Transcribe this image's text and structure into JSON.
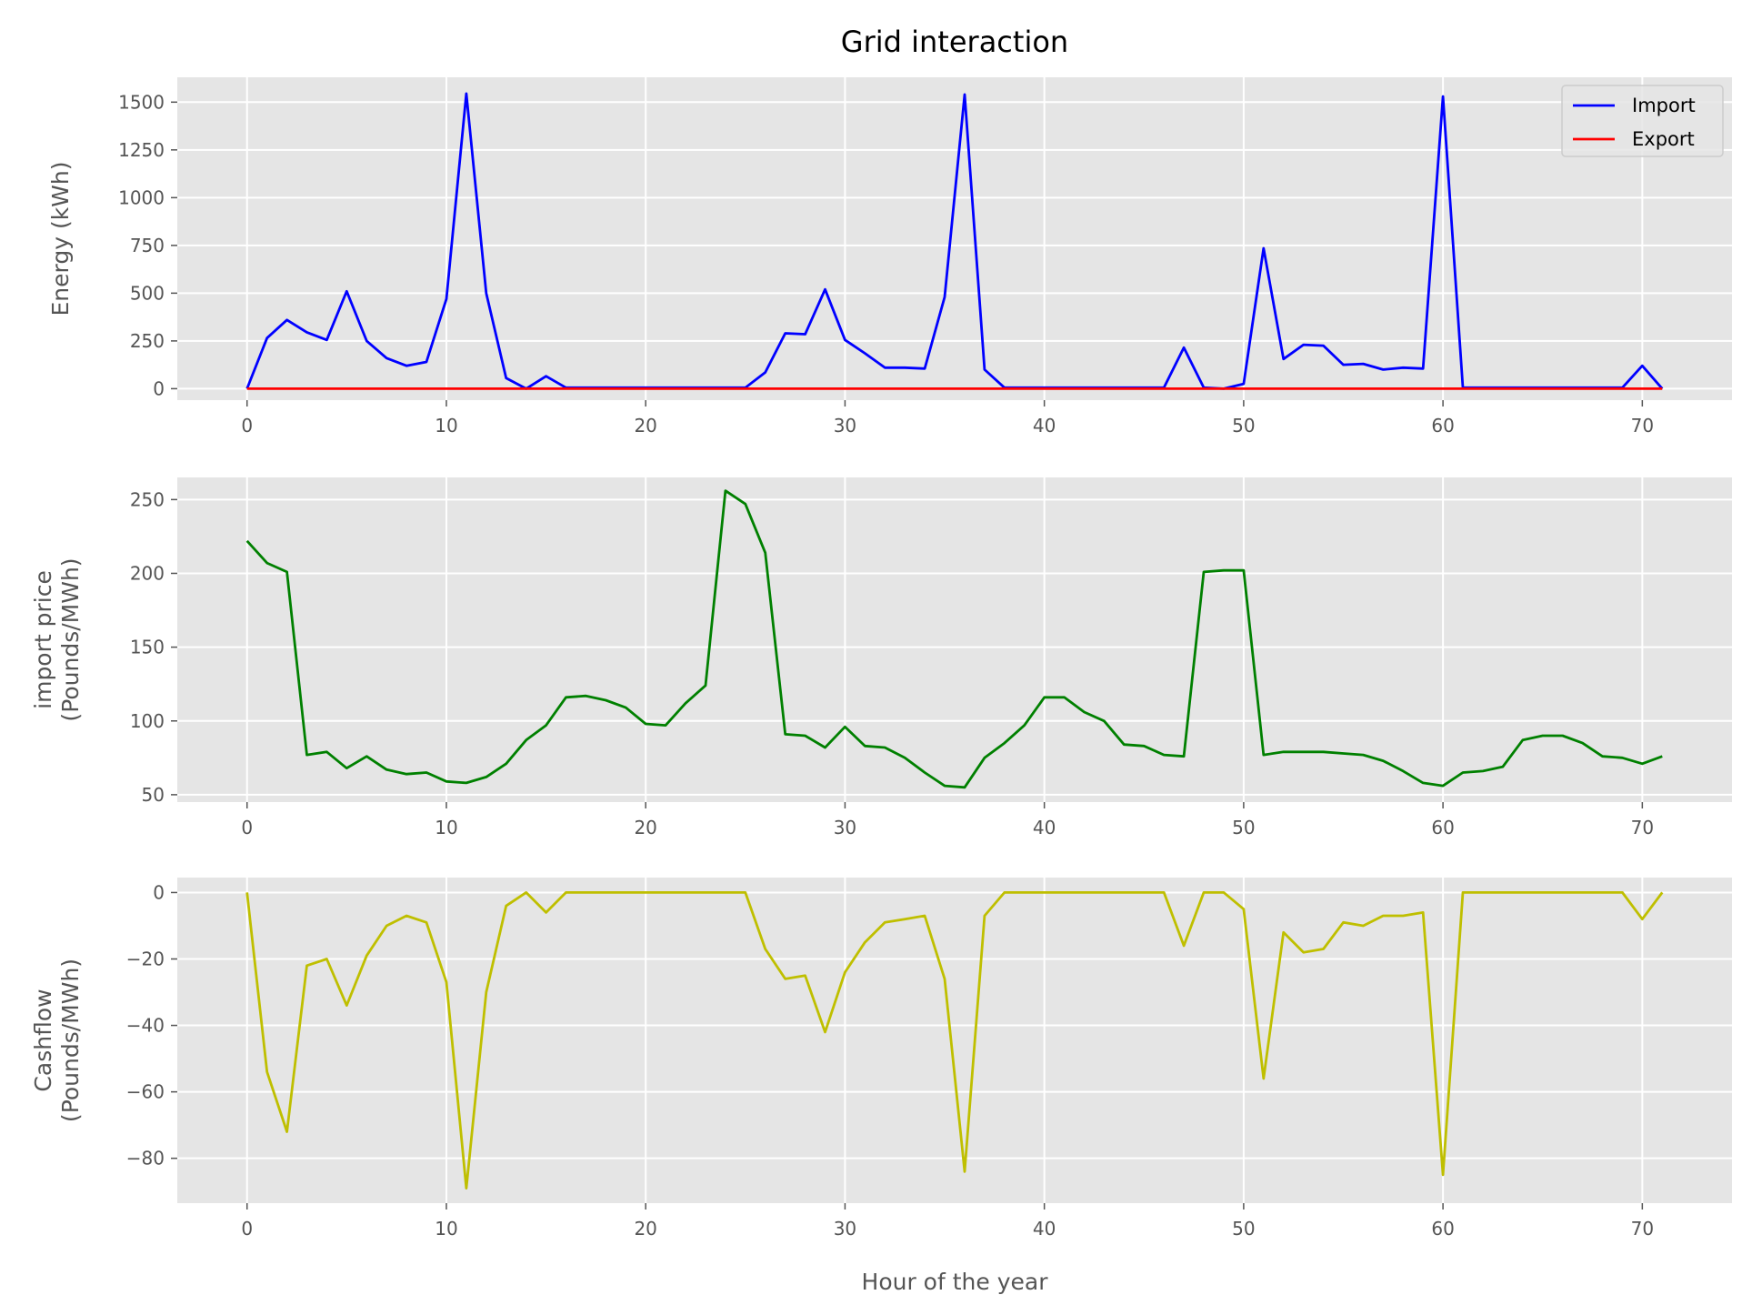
{
  "figure": {
    "title": "Grid interaction",
    "xlabel": "Hour of the year"
  },
  "colors": {
    "background": "#E5E5E5",
    "grid": "#FFFFFF",
    "import": "#0000FF",
    "export": "#FF0000",
    "price": "#008000",
    "cashflow": "#BFBF00"
  },
  "chart_data": [
    {
      "type": "line",
      "title": "Grid interaction",
      "xlabel": "",
      "ylabel": "Energy (kWh)",
      "xlim": [
        -3.5,
        74.5
      ],
      "ylim": [
        -60,
        1630
      ],
      "xticks": [
        0,
        10,
        20,
        30,
        40,
        50,
        60,
        70
      ],
      "yticks": [
        0,
        250,
        500,
        750,
        1000,
        1250,
        1500
      ],
      "grid": true,
      "legend": "top-right",
      "series": [
        {
          "name": "Import",
          "color": "#0000FF",
          "values": [
            0,
            265,
            360,
            295,
            255,
            510,
            250,
            160,
            120,
            140,
            470,
            1545,
            500,
            55,
            0,
            65,
            5,
            5,
            5,
            5,
            5,
            5,
            5,
            5,
            5,
            5,
            85,
            290,
            285,
            520,
            255,
            185,
            110,
            110,
            105,
            480,
            1540,
            100,
            5,
            5,
            5,
            5,
            5,
            5,
            5,
            5,
            5,
            215,
            5,
            0,
            25,
            735,
            155,
            230,
            225,
            125,
            130,
            100,
            110,
            105,
            1530,
            5,
            5,
            5,
            5,
            5,
            5,
            5,
            5,
            5,
            120,
            0
          ]
        },
        {
          "name": "Export",
          "color": "#FF0000",
          "values": [
            0,
            0,
            0,
            0,
            0,
            0,
            0,
            0,
            0,
            0,
            0,
            0,
            0,
            0,
            0,
            0,
            0,
            0,
            0,
            0,
            0,
            0,
            0,
            0,
            0,
            0,
            0,
            0,
            0,
            0,
            0,
            0,
            0,
            0,
            0,
            0,
            0,
            0,
            0,
            0,
            0,
            0,
            0,
            0,
            0,
            0,
            0,
            0,
            0,
            0,
            0,
            0,
            0,
            0,
            0,
            0,
            0,
            0,
            0,
            0,
            0,
            0,
            0,
            0,
            0,
            0,
            0,
            0,
            0,
            0,
            0,
            0
          ]
        }
      ]
    },
    {
      "type": "line",
      "ylabel_line1": "import price",
      "ylabel_line2": "(Pounds/MWh)",
      "xlim": [
        -3.5,
        74.5
      ],
      "ylim": [
        45,
        265
      ],
      "xticks": [
        0,
        10,
        20,
        30,
        40,
        50,
        60,
        70
      ],
      "yticks": [
        50,
        100,
        150,
        200,
        250
      ],
      "grid": true,
      "series": [
        {
          "color": "#008000",
          "values": [
            222,
            207,
            201,
            77,
            79,
            68,
            76,
            67,
            64,
            65,
            59,
            58,
            62,
            71,
            87,
            97,
            116,
            117,
            114,
            109,
            98,
            97,
            112,
            124,
            256,
            247,
            214,
            91,
            90,
            82,
            96,
            83,
            82,
            75,
            65,
            56,
            55,
            75,
            85,
            97,
            116,
            116,
            106,
            100,
            84,
            83,
            77,
            76,
            201,
            202,
            202,
            77,
            79,
            79,
            79,
            78,
            77,
            73,
            66,
            58,
            56,
            65,
            66,
            69,
            87,
            90,
            90,
            85,
            76,
            75,
            71,
            76
          ]
        }
      ]
    },
    {
      "type": "line",
      "xlabel": "Hour of the year",
      "ylabel_line1": "Cashflow",
      "ylabel_line2": "(Pounds/MWh)",
      "xlim": [
        -3.5,
        74.5
      ],
      "ylim": [
        -93.5,
        4.5
      ],
      "xticks": [
        0,
        10,
        20,
        30,
        40,
        50,
        60,
        70
      ],
      "yticks": [
        0,
        -20,
        -40,
        -60,
        -80
      ],
      "ytick_labels": [
        "0",
        "−20",
        "−40",
        "−60",
        "−80"
      ],
      "grid": true,
      "series": [
        {
          "color": "#BFBF00",
          "values": [
            0,
            -54,
            -72,
            -22,
            -20,
            -34,
            -19,
            -10,
            -7,
            -9,
            -27,
            -89,
            -30,
            -4,
            0,
            -6,
            0,
            0,
            0,
            0,
            0,
            0,
            0,
            0,
            0,
            0,
            -17,
            -26,
            -25,
            -42,
            -24,
            -15,
            -9,
            -8,
            -7,
            -26,
            -84,
            -7,
            0,
            0,
            0,
            0,
            0,
            0,
            0,
            0,
            0,
            -16,
            0,
            0,
            -5,
            -56,
            -12,
            -18,
            -17,
            -9,
            -10,
            -7,
            -7,
            -6,
            -85,
            0,
            0,
            0,
            0,
            0,
            0,
            0,
            0,
            0,
            -8,
            0
          ]
        }
      ]
    }
  ]
}
